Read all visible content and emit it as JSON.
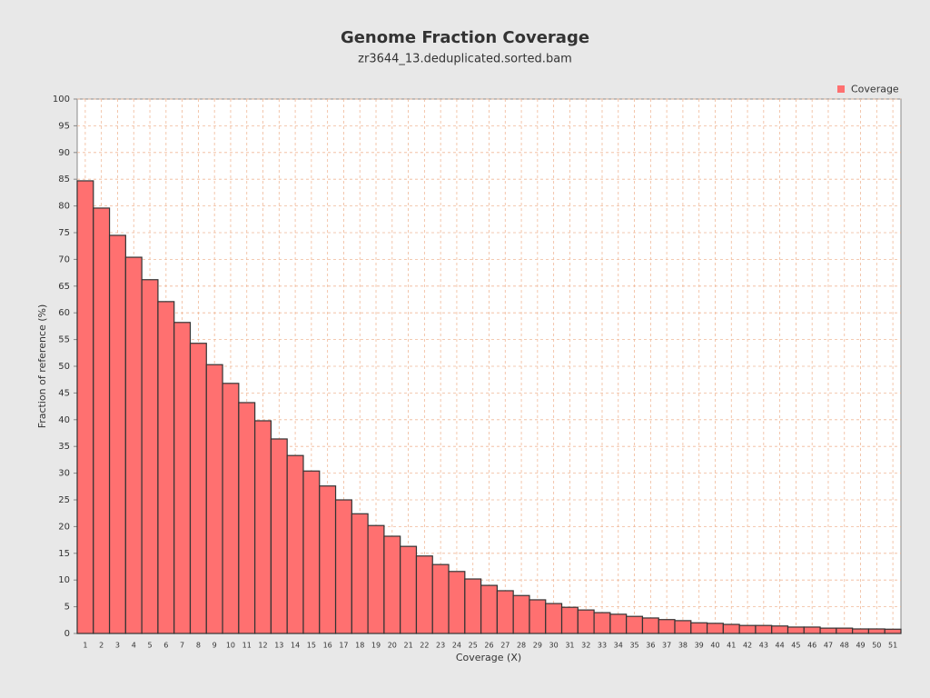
{
  "chart_data": {
    "type": "bar",
    "title": "Genome Fraction Coverage",
    "subtitle": "zr3644_13.deduplicated.sorted.bam",
    "x_label": "Coverage (X)",
    "y_label": "Fraction of reference (%)",
    "categories": [
      "1",
      "2",
      "3",
      "4",
      "5",
      "6",
      "7",
      "8",
      "9",
      "10",
      "11",
      "12",
      "13",
      "14",
      "15",
      "16",
      "17",
      "18",
      "19",
      "20",
      "21",
      "22",
      "23",
      "24",
      "25",
      "26",
      "27",
      "28",
      "29",
      "30",
      "31",
      "32",
      "33",
      "34",
      "35",
      "36",
      "37",
      "38",
      "39",
      "40",
      "41",
      "42",
      "43",
      "44",
      "45",
      "46",
      "47",
      "48",
      "49",
      "50",
      "51"
    ],
    "series": [
      {
        "name": "Coverage",
        "color": "#ff7070",
        "values": [
          84.7,
          79.6,
          74.5,
          70.4,
          66.2,
          62.1,
          58.2,
          54.3,
          50.3,
          46.8,
          43.2,
          39.8,
          36.4,
          33.3,
          30.4,
          27.6,
          25.0,
          22.4,
          20.2,
          18.2,
          16.3,
          14.5,
          12.9,
          11.6,
          10.2,
          9.0,
          8.0,
          7.1,
          6.3,
          5.6,
          4.9,
          4.4,
          3.9,
          3.6,
          3.2,
          2.9,
          2.6,
          2.4,
          2.0,
          1.9,
          1.7,
          1.5,
          1.5,
          1.4,
          1.2,
          1.2,
          1.0,
          1.0,
          0.85,
          0.85,
          0.8
        ]
      }
    ],
    "ylim": [
      0,
      100
    ],
    "yticks": [
      0,
      5,
      10,
      15,
      20,
      25,
      30,
      35,
      40,
      45,
      50,
      55,
      60,
      65,
      70,
      75,
      80,
      85,
      90,
      95,
      100
    ],
    "grid": true,
    "legend": "top-right"
  }
}
